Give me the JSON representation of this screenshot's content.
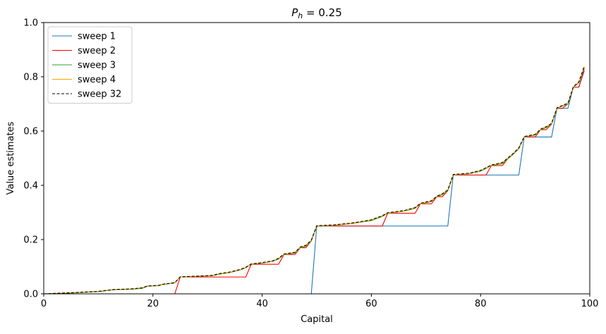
{
  "chart_data": {
    "type": "line",
    "title_prefix": "P",
    "title_subscript": "h",
    "title_suffix": " = 0.25",
    "xlabel": "Capital",
    "ylabel": "Value estimates",
    "xlim": [
      0,
      100
    ],
    "ylim": [
      0,
      1.0
    ],
    "x_ticks": [
      0,
      20,
      40,
      60,
      80,
      100
    ],
    "x_tick_labels": [
      "0",
      "20",
      "40",
      "60",
      "80",
      "100"
    ],
    "y_ticks": [
      0,
      0.2,
      0.4,
      0.6,
      0.8,
      1.0
    ],
    "y_tick_labels": [
      "0.0",
      "0.2",
      "0.4",
      "0.6",
      "0.8",
      "1.0"
    ],
    "grid": false,
    "legend_position": "top-left",
    "series": [
      {
        "name": "sweep 1",
        "color": "#1f77b4",
        "dash": "solid",
        "x": [
          0,
          49,
          50,
          74,
          75,
          87,
          88,
          93,
          94,
          96,
          97,
          98,
          99
        ],
        "values": [
          0,
          0,
          0.25,
          0.25,
          0.438,
          0.438,
          0.578,
          0.578,
          0.684,
          0.684,
          0.762,
          0.762,
          0.822
        ]
      },
      {
        "name": "sweep 2",
        "color": "#ff0000",
        "dash": "solid",
        "x": [
          0,
          24,
          25,
          37,
          38,
          43,
          44,
          46,
          47,
          48,
          49,
          50,
          62,
          63,
          68,
          69,
          71,
          72,
          73,
          74,
          75,
          81,
          82,
          84,
          85,
          86,
          87,
          88,
          90,
          91,
          92,
          93,
          94,
          95,
          96,
          97,
          98,
          99
        ],
        "values": [
          0,
          0,
          0.062,
          0.062,
          0.109,
          0.109,
          0.145,
          0.145,
          0.17,
          0.17,
          0.195,
          0.25,
          0.25,
          0.297,
          0.297,
          0.332,
          0.332,
          0.358,
          0.358,
          0.38,
          0.438,
          0.438,
          0.473,
          0.473,
          0.498,
          0.515,
          0.535,
          0.578,
          0.578,
          0.605,
          0.605,
          0.625,
          0.684,
          0.684,
          0.7,
          0.762,
          0.762,
          0.83
        ]
      },
      {
        "name": "sweep 3",
        "color": "#2ca02c",
        "dash": "solid",
        "x": [
          0,
          5,
          10,
          12,
          13,
          16,
          18,
          19,
          21,
          22,
          24,
          25,
          28,
          31,
          32,
          34,
          36,
          37,
          38,
          40,
          42,
          43,
          44,
          46,
          47,
          48,
          49,
          50,
          53,
          56,
          58,
          60,
          62,
          63,
          66,
          68,
          69,
          71,
          72,
          73,
          74,
          75,
          78,
          80,
          82,
          84,
          86,
          87,
          88,
          90,
          91,
          92,
          93,
          94,
          96,
          97,
          98,
          99
        ],
        "values": [
          0,
          0.003,
          0.008,
          0.013,
          0.015,
          0.017,
          0.02,
          0.028,
          0.03,
          0.035,
          0.04,
          0.062,
          0.064,
          0.067,
          0.072,
          0.078,
          0.088,
          0.096,
          0.109,
          0.113,
          0.12,
          0.128,
          0.145,
          0.15,
          0.17,
          0.175,
          0.195,
          0.25,
          0.252,
          0.258,
          0.264,
          0.27,
          0.285,
          0.297,
          0.305,
          0.315,
          0.332,
          0.34,
          0.358,
          0.365,
          0.38,
          0.438,
          0.443,
          0.452,
          0.473,
          0.48,
          0.515,
          0.535,
          0.578,
          0.585,
          0.605,
          0.612,
          0.625,
          0.684,
          0.7,
          0.762,
          0.778,
          0.835
        ]
      },
      {
        "name": "sweep 4",
        "color": "#ffa500",
        "dash": "solid",
        "x": [
          0,
          5,
          10,
          12,
          13,
          16,
          18,
          19,
          21,
          22,
          24,
          25,
          28,
          31,
          32,
          34,
          36,
          37,
          38,
          40,
          42,
          43,
          44,
          46,
          47,
          48,
          49,
          50,
          53,
          56,
          58,
          60,
          62,
          63,
          66,
          68,
          69,
          71,
          72,
          73,
          74,
          75,
          78,
          80,
          82,
          84,
          86,
          87,
          88,
          90,
          91,
          92,
          93,
          94,
          96,
          97,
          98,
          99
        ],
        "values": [
          0,
          0.004,
          0.009,
          0.014,
          0.016,
          0.018,
          0.022,
          0.029,
          0.031,
          0.036,
          0.041,
          0.062,
          0.065,
          0.068,
          0.073,
          0.079,
          0.089,
          0.097,
          0.11,
          0.114,
          0.121,
          0.13,
          0.146,
          0.152,
          0.172,
          0.178,
          0.197,
          0.251,
          0.253,
          0.259,
          0.265,
          0.272,
          0.287,
          0.298,
          0.306,
          0.317,
          0.333,
          0.342,
          0.359,
          0.368,
          0.382,
          0.439,
          0.444,
          0.454,
          0.474,
          0.483,
          0.517,
          0.537,
          0.579,
          0.587,
          0.606,
          0.615,
          0.627,
          0.685,
          0.702,
          0.763,
          0.78,
          0.837
        ]
      },
      {
        "name": "sweep 32",
        "color": "#000000",
        "dash": "dashed",
        "x": [
          0,
          5,
          10,
          12,
          13,
          16,
          18,
          19,
          21,
          22,
          24,
          25,
          28,
          31,
          32,
          34,
          36,
          37,
          38,
          40,
          42,
          43,
          44,
          46,
          47,
          48,
          49,
          50,
          53,
          56,
          58,
          60,
          62,
          63,
          66,
          68,
          69,
          71,
          72,
          73,
          74,
          75,
          78,
          80,
          82,
          84,
          86,
          87,
          88,
          90,
          91,
          92,
          93,
          94,
          96,
          97,
          98,
          99
        ],
        "values": [
          0,
          0.004,
          0.009,
          0.014,
          0.016,
          0.018,
          0.022,
          0.029,
          0.031,
          0.036,
          0.041,
          0.063,
          0.065,
          0.068,
          0.074,
          0.08,
          0.09,
          0.098,
          0.11,
          0.115,
          0.122,
          0.131,
          0.147,
          0.153,
          0.173,
          0.179,
          0.198,
          0.251,
          0.254,
          0.26,
          0.266,
          0.273,
          0.288,
          0.299,
          0.307,
          0.318,
          0.334,
          0.343,
          0.36,
          0.369,
          0.383,
          0.44,
          0.445,
          0.455,
          0.475,
          0.484,
          0.518,
          0.538,
          0.58,
          0.588,
          0.607,
          0.616,
          0.628,
          0.686,
          0.703,
          0.764,
          0.781,
          0.84
        ]
      }
    ]
  }
}
